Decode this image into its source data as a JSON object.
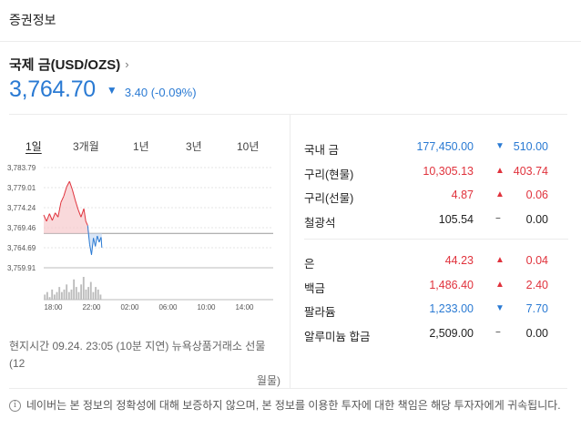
{
  "header": {
    "title": "증권정보"
  },
  "asset": {
    "name": "국제 금(USD/OZS)",
    "chevron": "›"
  },
  "quote": {
    "price": "3,764.70",
    "change_arrow": "▼",
    "change_text": "3.40 (-0.09%)",
    "color": "#2a7ad3"
  },
  "tabs": [
    {
      "label": "1일",
      "active": true
    },
    {
      "label": "3개월",
      "active": false
    },
    {
      "label": "1년",
      "active": false
    },
    {
      "label": "3년",
      "active": false
    },
    {
      "label": "10년",
      "active": false
    }
  ],
  "chart_data": {
    "type": "line",
    "y_ticks": [
      "3,783.79",
      "3,779.01",
      "3,774.24",
      "3,769.46",
      "3,764.69",
      "3,759.91"
    ],
    "ylim": [
      3759.91,
      3783.79
    ],
    "previous_close": 3768.1,
    "x_ticks": [
      "18:00",
      "22:00",
      "02:00",
      "06:00",
      "10:00",
      "14:00"
    ],
    "x_range_hours": [
      17,
      41
    ],
    "series": [
      {
        "x": [
          17.0,
          17.3,
          17.6,
          17.9,
          18.2,
          18.5,
          18.8,
          19.1,
          19.4,
          19.7,
          20.0,
          20.3,
          20.6,
          20.9,
          21.2,
          21.4,
          21.6,
          21.8,
          22.0,
          22.2,
          22.4,
          22.6,
          22.8,
          23.0,
          23.08
        ],
        "y": [
          3772.5,
          3771.0,
          3772.8,
          3771.2,
          3773.0,
          3772.0,
          3775.5,
          3777.0,
          3779.2,
          3780.5,
          3778.5,
          3776.0,
          3773.8,
          3772.0,
          3774.0,
          3771.0,
          3770.0,
          3765.5,
          3763.0,
          3767.0,
          3765.0,
          3767.5,
          3766.0,
          3767.2,
          3764.7
        ]
      }
    ],
    "volume": [
      2,
      3,
      1,
      4,
      2,
      3,
      5,
      3,
      4,
      6,
      3,
      4,
      8,
      5,
      3,
      6,
      9,
      4,
      5,
      7,
      3,
      5,
      4,
      2
    ]
  },
  "source": {
    "line1": "현지시간 09.24. 23:05 (10분 지연) 뉴욕상품거래소 선물(12",
    "line2": "월물)"
  },
  "metals_top": [
    {
      "name": "국내 금",
      "value": "177,450.00",
      "arrow": "▼",
      "change": "510.00",
      "dir": "down"
    },
    {
      "name": "구리(현물)",
      "value": "10,305.13",
      "arrow": "▲",
      "change": "403.74",
      "dir": "up"
    },
    {
      "name": "구리(선물)",
      "value": "4.87",
      "arrow": "▲",
      "change": "0.06",
      "dir": "up"
    },
    {
      "name": "철광석",
      "value": "105.54",
      "arrow": "−",
      "change": "0.00",
      "dir": "flat"
    }
  ],
  "metals_bottom": [
    {
      "name": "은",
      "value": "44.23",
      "arrow": "▲",
      "change": "0.04",
      "dir": "up"
    },
    {
      "name": "백금",
      "value": "1,486.40",
      "arrow": "▲",
      "change": "2.40",
      "dir": "up"
    },
    {
      "name": "팔라듐",
      "value": "1,233.00",
      "arrow": "▼",
      "change": "7.70",
      "dir": "down"
    },
    {
      "name": "알루미늄 합금",
      "value": "2,509.00",
      "arrow": "−",
      "change": "0.00",
      "dir": "flat"
    }
  ],
  "notice": {
    "icon": "ⓘ",
    "text": "네이버는 본 정보의 정확성에 대해 보증하지 않으며, 본 정보를 이용한 투자에 대한 책임은 해당 투자자에게 귀속됩니다."
  },
  "colors": {
    "up": "#e0323c",
    "down": "#2a7ad3",
    "flat": "#222222"
  }
}
